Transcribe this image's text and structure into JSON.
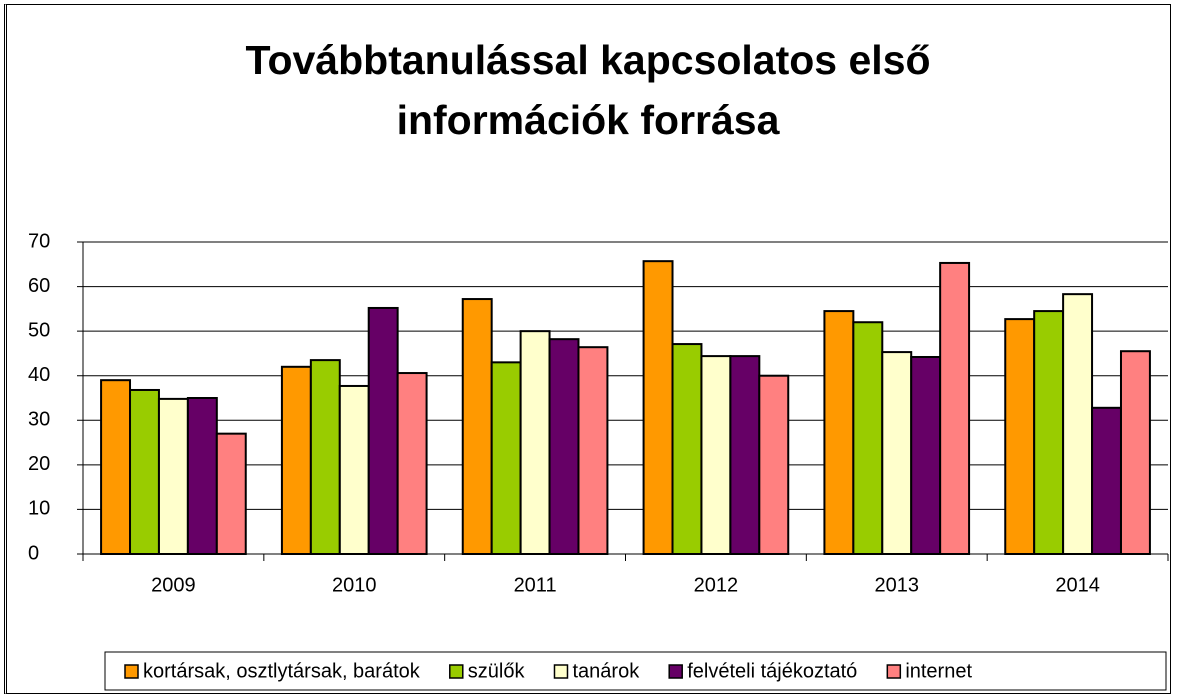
{
  "chart_data": {
    "type": "bar",
    "title": "Továbbtanulással kapcsolatos első információk forrása",
    "categories": [
      "2009",
      "2010",
      "2011",
      "2012",
      "2013",
      "2014"
    ],
    "series": [
      {
        "name": "kortársak, osztlytársak, barátok",
        "color": "#ff9900",
        "values": [
          39,
          42,
          57.2,
          65.7,
          54.5,
          52.7
        ]
      },
      {
        "name": "szülők",
        "color": "#99cc00",
        "values": [
          36.8,
          43.5,
          43,
          47.1,
          52,
          54.5
        ]
      },
      {
        "name": "tanárok",
        "color": "#ffffcc",
        "values": [
          34.8,
          37.7,
          50,
          44.4,
          45.3,
          58.3
        ]
      },
      {
        "name": "felvételi tájékoztató",
        "color": "#660066",
        "values": [
          35,
          55.2,
          48.2,
          44.4,
          44.2,
          32.8
        ]
      },
      {
        "name": "internet",
        "color": "#ff8080",
        "values": [
          27,
          40.6,
          46.4,
          40,
          65.3,
          45.5
        ]
      }
    ],
    "ylim": [
      0,
      70
    ],
    "yticks": [
      0,
      10,
      20,
      30,
      40,
      50,
      60,
      70
    ],
    "grid": true,
    "legend": "bottom"
  }
}
